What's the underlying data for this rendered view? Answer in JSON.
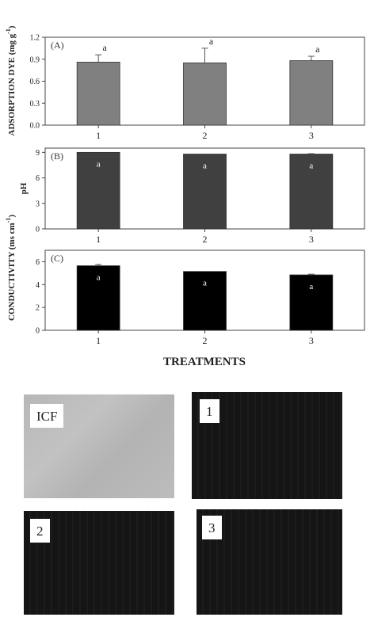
{
  "figure": {
    "x_axis_title": "TREATMENTS"
  },
  "chart_data": [
    {
      "type": "bar",
      "panel_label": "(A)",
      "ylabel_main": "ADSORPTION DYE",
      "ylabel_unit_base": "(mg g",
      "ylabel_unit_exp": "-1",
      "ylabel_unit_close": ")",
      "categories": [
        "1",
        "2",
        "3"
      ],
      "values": [
        0.86,
        0.85,
        0.88
      ],
      "errors": [
        0.1,
        0.2,
        0.06
      ],
      "value_labels": [
        "a",
        "a",
        "a"
      ],
      "label_position": "above",
      "ylim": [
        0,
        1.2
      ],
      "yticks": [
        "0.0",
        "0.3",
        "0.6",
        "0.9",
        "1.2"
      ],
      "bar_color": "#808080"
    },
    {
      "type": "bar",
      "panel_label": "(B)",
      "ylabel_main": "pH",
      "categories": [
        "1",
        "2",
        "3"
      ],
      "values": [
        9.0,
        8.8,
        8.8
      ],
      "errors": [
        0.0,
        0.0,
        0.05
      ],
      "value_labels": [
        "a",
        "a",
        "a"
      ],
      "label_position": "inside",
      "ylim": [
        0,
        9.5
      ],
      "yticks": [
        "0",
        "3",
        "6",
        "9"
      ],
      "bar_color": "#404040"
    },
    {
      "type": "bar",
      "panel_label": "(C)",
      "ylabel_main": "CONDUCTIVITY",
      "ylabel_unit_base": "(ms cm",
      "ylabel_unit_exp": "-1",
      "ylabel_unit_close": ")",
      "categories": [
        "1",
        "2",
        "3"
      ],
      "values": [
        5.65,
        5.15,
        4.85
      ],
      "errors": [
        0.12,
        0.0,
        0.06
      ],
      "value_labels": [
        "a",
        "a",
        "a"
      ],
      "label_position": "inside",
      "ylim": [
        0,
        7
      ],
      "yticks": [
        "0",
        "2",
        "4",
        "6"
      ],
      "bar_color": "#000000"
    }
  ],
  "photos": [
    {
      "label": "ICF",
      "tone": "light"
    },
    {
      "label": "1",
      "tone": "dark"
    },
    {
      "label": "2",
      "tone": "dark"
    },
    {
      "label": "3",
      "tone": "dark"
    }
  ]
}
